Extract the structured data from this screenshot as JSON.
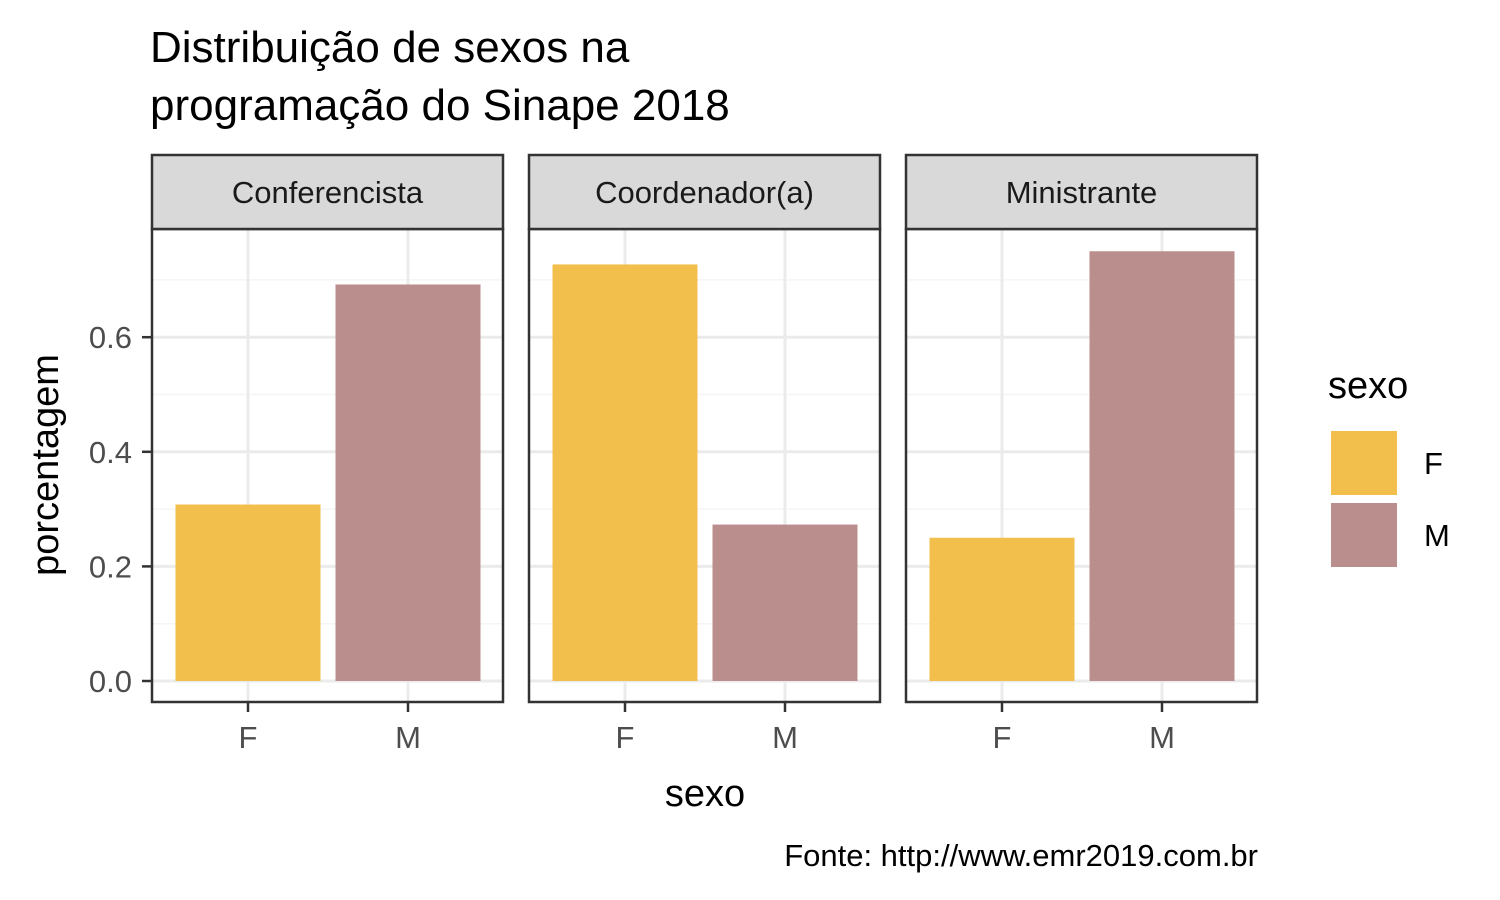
{
  "chart_data": {
    "type": "bar",
    "title_lines": [
      "Distribuição de sexos na",
      "programação do Sinape 2018"
    ],
    "xlabel": "sexo",
    "ylabel": "porcentagem",
    "caption": "Fonte: http://www.emr2019.com.br",
    "ylim": [
      0,
      0.785
    ],
    "yticks": [
      0.0,
      0.2,
      0.4,
      0.6
    ],
    "ytick_labels": [
      "0.0",
      "0.2",
      "0.4",
      "0.6"
    ],
    "grid": true,
    "legend": {
      "title": "sexo",
      "position": "right",
      "items": [
        {
          "label": "F",
          "color": "#F3BF4C"
        },
        {
          "label": "M",
          "color": "#BB8E8E"
        }
      ]
    },
    "categories": [
      "F",
      "M"
    ],
    "facets": [
      {
        "label": "Conferencista",
        "values": [
          0.308,
          0.692
        ]
      },
      {
        "label": "Coordenador(a)",
        "values": [
          0.727,
          0.273
        ]
      },
      {
        "label": "Ministrante",
        "values": [
          0.25,
          0.75
        ]
      }
    ],
    "colors": {
      "F": "#F3BF4C",
      "M": "#BB8E8E",
      "strip_background": "#D9D9D9",
      "panel_border": "#333333",
      "grid_major": "#EBEBEB",
      "grid_minor": "#F5F5F5"
    }
  }
}
